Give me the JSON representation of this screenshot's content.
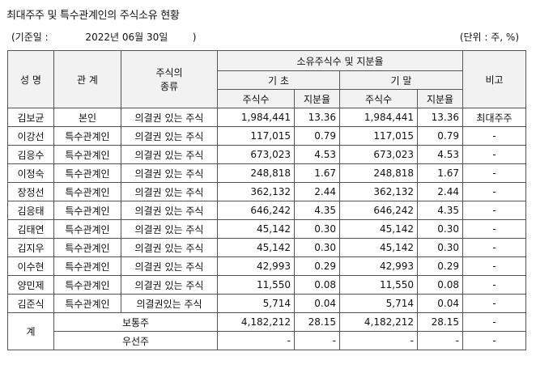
{
  "title": "최대주주 및 특수관계인의 주식소유 현황",
  "meta": {
    "base_date": "(기준일 :            2022년 06월 30일        )",
    "unit": "(단위 : 주, %)"
  },
  "header": {
    "name": "성 명",
    "relation": "관 계",
    "stock_type": [
      "주식의",
      "종류"
    ],
    "ownership": "소유주식수 및 지분율",
    "beginning": "기 초",
    "ending": "기 말",
    "shares": "주식수",
    "ratio": "지분율",
    "note": "비고"
  },
  "rows": [
    {
      "name": "김보균",
      "relation": "본인",
      "type": "의결권 있는 주식",
      "begin_shares": "1,984,441",
      "begin_ratio": "13.36",
      "end_shares": "1,984,441",
      "end_ratio": "13.36",
      "note": "최대주주"
    },
    {
      "name": "이강선",
      "relation": "특수관계인",
      "type": "의결권 있는 주식",
      "begin_shares": "117,015",
      "begin_ratio": "0.79",
      "end_shares": "117,015",
      "end_ratio": "0.79",
      "note": "-"
    },
    {
      "name": "김응수",
      "relation": "특수관계인",
      "type": "의결권 있는 주식",
      "begin_shares": "673,023",
      "begin_ratio": "4.53",
      "end_shares": "673,023",
      "end_ratio": "4.53",
      "note": "-"
    },
    {
      "name": "이정숙",
      "relation": "특수관계인",
      "type": "의결권 있는 주식",
      "begin_shares": "248,818",
      "begin_ratio": "1.67",
      "end_shares": "248,818",
      "end_ratio": "1.67",
      "note": "-"
    },
    {
      "name": "장정선",
      "relation": "특수관계인",
      "type": "의결권 있는 주식",
      "begin_shares": "362,132",
      "begin_ratio": "2.44",
      "end_shares": "362,132",
      "end_ratio": "2.44",
      "note": "-"
    },
    {
      "name": "김응태",
      "relation": "특수관계인",
      "type": "의결권 있는 주식",
      "begin_shares": "646,242",
      "begin_ratio": "4.35",
      "end_shares": "646,242",
      "end_ratio": "4.35",
      "note": "-"
    },
    {
      "name": "김태연",
      "relation": "특수관계인",
      "type": "의결권 있는 주식",
      "begin_shares": "45,142",
      "begin_ratio": "0.30",
      "end_shares": "45,142",
      "end_ratio": "0.30",
      "note": "-"
    },
    {
      "name": "김지우",
      "relation": "특수관계인",
      "type": "의결권 있는 주식",
      "begin_shares": "45,142",
      "begin_ratio": "0.30",
      "end_shares": "45,142",
      "end_ratio": "0.30",
      "note": "-"
    },
    {
      "name": "이수현",
      "relation": "특수관계인",
      "type": "의결권 있는 주식",
      "begin_shares": "42,993",
      "begin_ratio": "0.29",
      "end_shares": "42,993",
      "end_ratio": "0.29",
      "note": "-"
    },
    {
      "name": "양민제",
      "relation": "특수관계인",
      "type": "의결권 있는 주식",
      "begin_shares": "11,550",
      "begin_ratio": "0.08",
      "end_shares": "11,550",
      "end_ratio": "0.08",
      "note": "-"
    },
    {
      "name": "김준식",
      "relation": "특수관계인",
      "type": "의결권있는 주식",
      "begin_shares": "5,714",
      "begin_ratio": "0.04",
      "end_shares": "5,714",
      "end_ratio": "0.04",
      "note": "-"
    }
  ],
  "total": {
    "label": "계",
    "common": {
      "type": "보통주",
      "begin_shares": "4,182,212",
      "begin_ratio": "28.15",
      "end_shares": "4,182,212",
      "end_ratio": "28.15",
      "note": "-"
    },
    "preferred": {
      "type": "우선주",
      "begin_shares": "-",
      "begin_ratio": "-",
      "end_shares": "-",
      "end_ratio": "-",
      "note": "-"
    }
  }
}
